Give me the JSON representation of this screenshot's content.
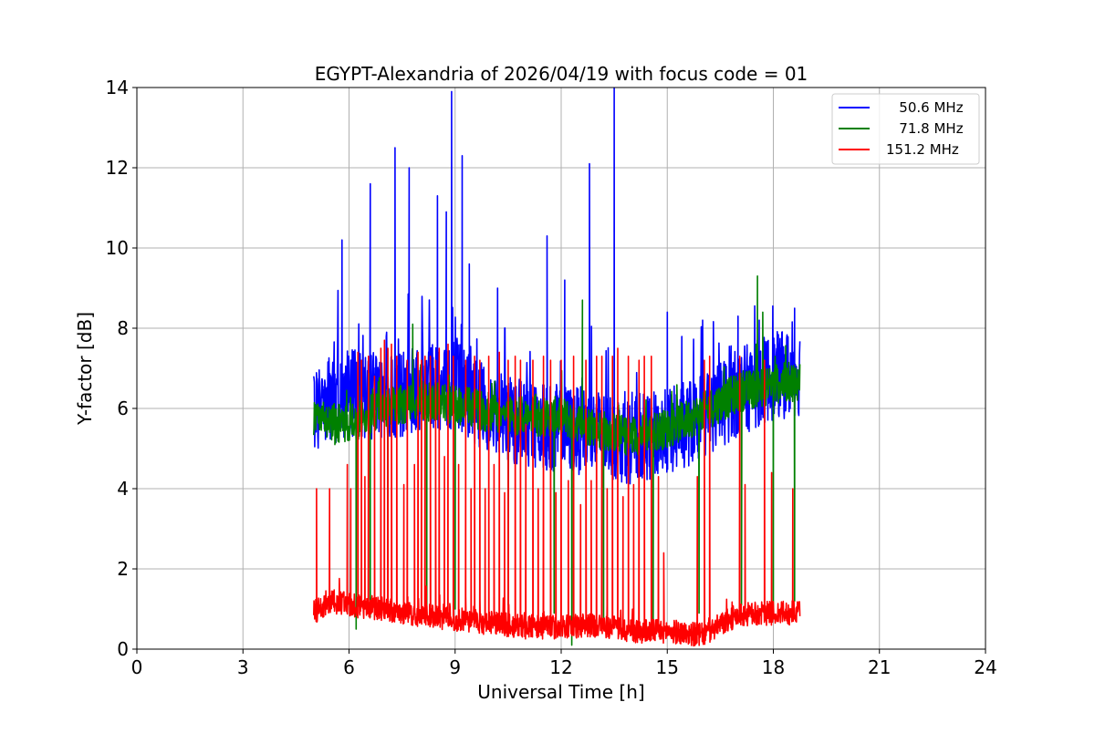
{
  "chart_data": {
    "type": "line",
    "title": "EGYPT-Alexandria of 2026/04/19 with focus code = 01",
    "xlabel": "Universal Time [h]",
    "ylabel": "Y-factor [dB]",
    "xlim": [
      0,
      24
    ],
    "ylim": [
      0,
      14
    ],
    "xticks": [
      0,
      3,
      6,
      9,
      12,
      15,
      18,
      21,
      24
    ],
    "yticks": [
      0,
      2,
      4,
      6,
      8,
      10,
      12,
      14
    ],
    "xtick_labels": [
      "0",
      "3",
      "6",
      "9",
      "12",
      "15",
      "18",
      "21",
      "24"
    ],
    "ytick_labels": [
      "0",
      "2",
      "4",
      "6",
      "8",
      "10",
      "12",
      "14"
    ],
    "grid": true,
    "legend_position": "top-right",
    "time_range_h": [
      5.0,
      18.75
    ],
    "series": [
      {
        "name": "50.6 MHz",
        "legend_label": "   50.6 MHz",
        "color": "#0000ff",
        "baseline": [
          [
            5.0,
            6.0
          ],
          [
            6.0,
            6.4
          ],
          [
            7.0,
            6.3
          ],
          [
            8.0,
            6.5
          ],
          [
            9.0,
            6.6
          ],
          [
            10.0,
            5.9
          ],
          [
            11.0,
            5.6
          ],
          [
            12.0,
            5.5
          ],
          [
            13.0,
            5.4
          ],
          [
            14.0,
            5.2
          ],
          [
            15.0,
            5.4
          ],
          [
            16.0,
            5.8
          ],
          [
            17.0,
            6.4
          ],
          [
            18.0,
            6.8
          ],
          [
            18.75,
            6.9
          ]
        ],
        "noise": 1.1,
        "peaks": [
          [
            5.8,
            10.2
          ],
          [
            6.6,
            11.6
          ],
          [
            7.3,
            12.5
          ],
          [
            7.7,
            12.0
          ],
          [
            8.5,
            11.3
          ],
          [
            8.75,
            10.9
          ],
          [
            8.9,
            13.9
          ],
          [
            9.2,
            12.3
          ],
          [
            9.4,
            9.6
          ],
          [
            10.2,
            9.0
          ],
          [
            11.6,
            10.3
          ],
          [
            12.1,
            9.2
          ],
          [
            12.8,
            12.1
          ],
          [
            13.5,
            14.0
          ],
          [
            15.0,
            8.4
          ],
          [
            16.0,
            8.2
          ],
          [
            17.0,
            8.3
          ],
          [
            17.6,
            8.2
          ],
          [
            18.6,
            8.5
          ]
        ],
        "dips": []
      },
      {
        "name": "71.8 MHz",
        "legend_label": "   71.8 MHz",
        "color": "#008000",
        "baseline": [
          [
            5.0,
            5.7
          ],
          [
            6.0,
            5.6
          ],
          [
            7.0,
            6.0
          ],
          [
            8.0,
            6.2
          ],
          [
            9.0,
            6.1
          ],
          [
            10.0,
            5.9
          ],
          [
            11.0,
            5.8
          ],
          [
            12.0,
            5.8
          ],
          [
            13.0,
            5.5
          ],
          [
            14.0,
            5.3
          ],
          [
            15.0,
            5.5
          ],
          [
            16.0,
            5.9
          ],
          [
            17.0,
            6.4
          ],
          [
            18.0,
            6.6
          ],
          [
            18.75,
            6.7
          ]
        ],
        "noise": 0.5,
        "peaks": [
          [
            12.6,
            8.7
          ],
          [
            17.55,
            9.3
          ],
          [
            17.7,
            8.4
          ],
          [
            7.8,
            8.1
          ]
        ],
        "dips": [
          [
            5.6,
            5.1
          ],
          [
            6.2,
            0.5
          ],
          [
            6.6,
            0.8
          ],
          [
            7.1,
            1.0
          ],
          [
            8.2,
            0.9
          ],
          [
            9.0,
            1.0
          ],
          [
            10.5,
            1.1
          ],
          [
            11.8,
            0.9
          ],
          [
            12.3,
            0.1
          ],
          [
            13.2,
            0.6
          ],
          [
            14.6,
            0.7
          ],
          [
            15.9,
            0.9
          ],
          [
            17.1,
            1.1
          ],
          [
            18.0,
            1.0
          ],
          [
            18.6,
            1.2
          ]
        ]
      },
      {
        "name": "151.2 MHz",
        "legend_label": "151.2 MHz",
        "color": "#ff0000",
        "baseline": [
          [
            5.0,
            0.9
          ],
          [
            5.5,
            1.2
          ],
          [
            6.0,
            1.1
          ],
          [
            7.0,
            1.0
          ],
          [
            8.0,
            0.85
          ],
          [
            9.0,
            0.75
          ],
          [
            10.0,
            0.65
          ],
          [
            11.0,
            0.55
          ],
          [
            12.0,
            0.55
          ],
          [
            13.0,
            0.6
          ],
          [
            14.0,
            0.45
          ],
          [
            15.0,
            0.45
          ],
          [
            16.0,
            0.35
          ],
          [
            16.5,
            0.6
          ],
          [
            17.0,
            0.85
          ],
          [
            18.0,
            0.9
          ],
          [
            18.75,
            0.9
          ]
        ],
        "noise": 0.3,
        "peaks": [
          [
            5.08,
            4.0
          ],
          [
            5.45,
            4.0
          ],
          [
            5.95,
            4.6
          ],
          [
            6.05,
            4.0
          ],
          [
            6.25,
            7.4
          ],
          [
            6.35,
            7.2
          ],
          [
            6.45,
            4.3
          ],
          [
            6.55,
            7.3
          ],
          [
            6.72,
            6.8
          ],
          [
            6.9,
            7.5
          ],
          [
            7.0,
            7.7
          ],
          [
            7.1,
            7.5
          ],
          [
            7.2,
            7.6
          ],
          [
            7.35,
            7.3
          ],
          [
            7.55,
            4.1
          ],
          [
            7.65,
            7.2
          ],
          [
            7.85,
            4.6
          ],
          [
            7.95,
            7.4
          ],
          [
            8.05,
            7.2
          ],
          [
            8.15,
            7.3
          ],
          [
            8.3,
            7.3
          ],
          [
            8.45,
            7.2
          ],
          [
            8.55,
            7.5
          ],
          [
            8.7,
            4.8
          ],
          [
            8.8,
            7.6
          ],
          [
            8.95,
            7.3
          ],
          [
            9.1,
            4.6
          ],
          [
            9.3,
            7.2
          ],
          [
            9.45,
            4.0
          ],
          [
            9.55,
            7.3
          ],
          [
            9.7,
            7.2
          ],
          [
            9.85,
            4.0
          ],
          [
            9.95,
            7.3
          ],
          [
            10.1,
            4.6
          ],
          [
            10.25,
            7.4
          ],
          [
            10.4,
            3.9
          ],
          [
            10.5,
            7.2
          ],
          [
            10.7,
            7.3
          ],
          [
            10.85,
            7.2
          ],
          [
            11.0,
            5.6
          ],
          [
            11.2,
            7.2
          ],
          [
            11.35,
            4.0
          ],
          [
            11.5,
            7.3
          ],
          [
            11.7,
            7.2
          ],
          [
            11.85,
            3.9
          ],
          [
            12.0,
            7.2
          ],
          [
            12.2,
            4.2
          ],
          [
            12.35,
            7.3
          ],
          [
            12.55,
            3.6
          ],
          [
            12.7,
            7.2
          ],
          [
            12.85,
            4.2
          ],
          [
            13.0,
            7.3
          ],
          [
            13.15,
            7.3
          ],
          [
            13.3,
            4.0
          ],
          [
            13.45,
            7.3
          ],
          [
            13.6,
            7.5
          ],
          [
            13.75,
            3.8
          ],
          [
            13.9,
            7.3
          ],
          [
            14.05,
            4.1
          ],
          [
            14.2,
            7.2
          ],
          [
            14.35,
            7.3
          ],
          [
            14.55,
            7.3
          ],
          [
            14.75,
            4.3
          ],
          [
            14.9,
            2.4
          ],
          [
            15.85,
            4.3
          ],
          [
            16.05,
            7.2
          ],
          [
            16.2,
            7.3
          ],
          [
            17.05,
            7.3
          ],
          [
            17.2,
            4.1
          ],
          [
            17.75,
            7.2
          ],
          [
            17.95,
            4.4
          ],
          [
            18.55,
            4.0
          ]
        ],
        "dips": []
      }
    ]
  }
}
